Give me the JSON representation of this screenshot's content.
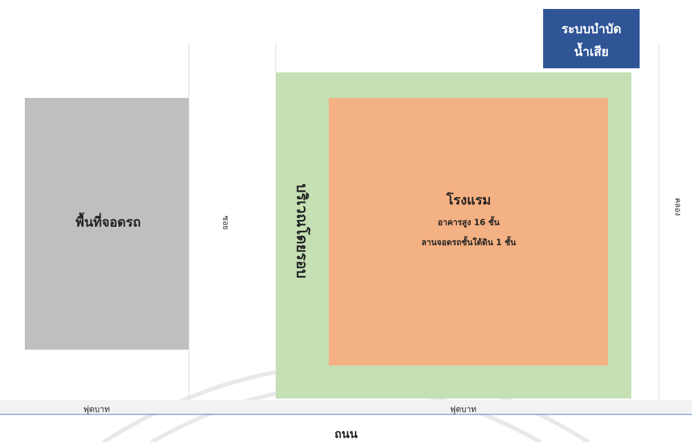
{
  "parking": {
    "label": "พื้นที่จอดรถ"
  },
  "soi": {
    "label": "ซอย"
  },
  "surrounding": {
    "label": "บริเวณโดยรอบ"
  },
  "hotel": {
    "title": "โรงแรม",
    "lines": [
      "อาคารสูง 16 ชั้น",
      "ลานจอดรถชั้นใต้ดิน 1 ชั้น"
    ]
  },
  "wastewater": {
    "lines": [
      "ระบบบำบัด",
      "น้ำเสีย"
    ]
  },
  "canal": {
    "label": "คลอง"
  },
  "footpath": {
    "labels": [
      "ฟุตบาท",
      "ฟุตบาท"
    ]
  },
  "road": {
    "label": "ถนน"
  }
}
